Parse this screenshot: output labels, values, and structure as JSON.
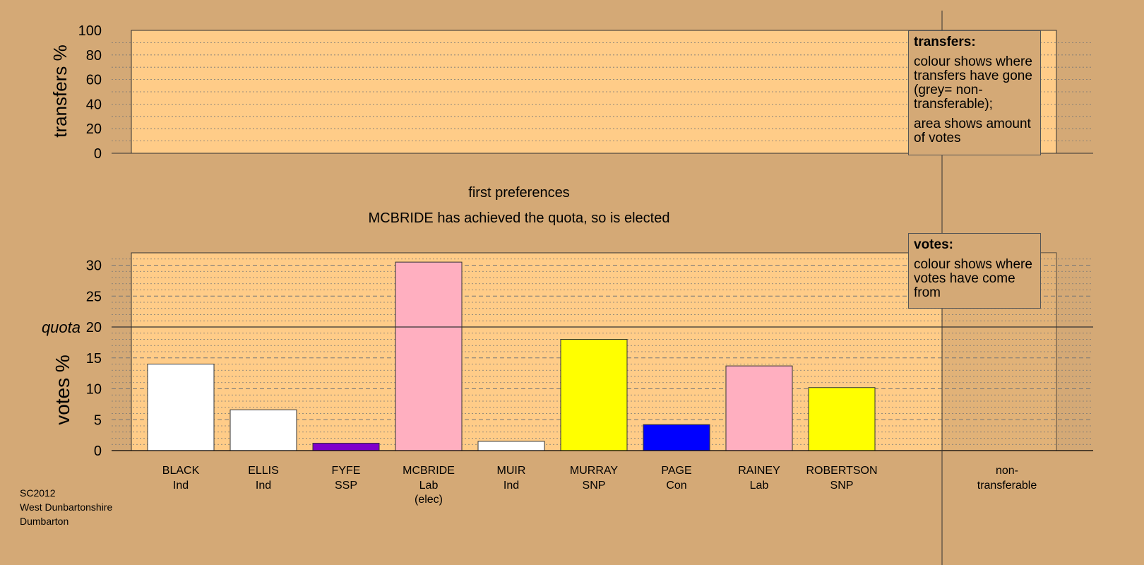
{
  "colors": {
    "background": "#D4A976",
    "plot_fill": "#FFCC88",
    "plot_fill_nontransferable": "#C99C6C"
  },
  "transfers_panel": {
    "ylabel": "transfers %",
    "ylim": [
      0,
      100
    ],
    "yticks": [
      "0",
      "20",
      "40",
      "60",
      "80",
      "100"
    ]
  },
  "captions": {
    "stage": "first preferences",
    "status": "MCBRIDE has achieved the quota, so is elected"
  },
  "legend_transfers": {
    "heading": "transfers:",
    "text1": "colour shows where transfers have gone (grey= non-transferable);",
    "text2": "area shows amount of votes"
  },
  "legend_votes": {
    "heading": "votes:",
    "text1": "colour shows where votes have come from"
  },
  "footer": {
    "line1": "SC2012",
    "line2": "West Dunbartonshire",
    "line3": "Dumbarton"
  },
  "chart_data": {
    "type": "bar",
    "ylabel": "votes %",
    "ylim": [
      0,
      32
    ],
    "yticks": [
      "0",
      "5",
      "10",
      "15",
      "20",
      "25",
      "30"
    ],
    "quota": 20,
    "quota_label": "quota",
    "categories": [
      {
        "name": "BLACK",
        "party": "Ind",
        "note": "",
        "value": 14.0,
        "color": "#FFFFFF"
      },
      {
        "name": "ELLIS",
        "party": "Ind",
        "note": "",
        "value": 6.6,
        "color": "#FFFFFF"
      },
      {
        "name": "FYFE",
        "party": "SSP",
        "note": "",
        "value": 1.2,
        "color": "#8000CC"
      },
      {
        "name": "MCBRIDE",
        "party": "Lab",
        "note": "(elec)",
        "value": 30.5,
        "color": "#FFAFC0"
      },
      {
        "name": "MUIR",
        "party": "Ind",
        "note": "",
        "value": 1.5,
        "color": "#FFFFFF"
      },
      {
        "name": "MURRAY",
        "party": "SNP",
        "note": "",
        "value": 18.0,
        "color": "#FFFF00"
      },
      {
        "name": "PAGE",
        "party": "Con",
        "note": "",
        "value": 4.2,
        "color": "#0000FF"
      },
      {
        "name": "RAINEY",
        "party": "Lab",
        "note": "",
        "value": 13.7,
        "color": "#FFAFC0"
      },
      {
        "name": "ROBERTSON",
        "party": "SNP",
        "note": "",
        "value": 10.2,
        "color": "#FFFF00"
      }
    ],
    "nontransferable": {
      "line1": "non-",
      "line2": "transferable"
    }
  }
}
